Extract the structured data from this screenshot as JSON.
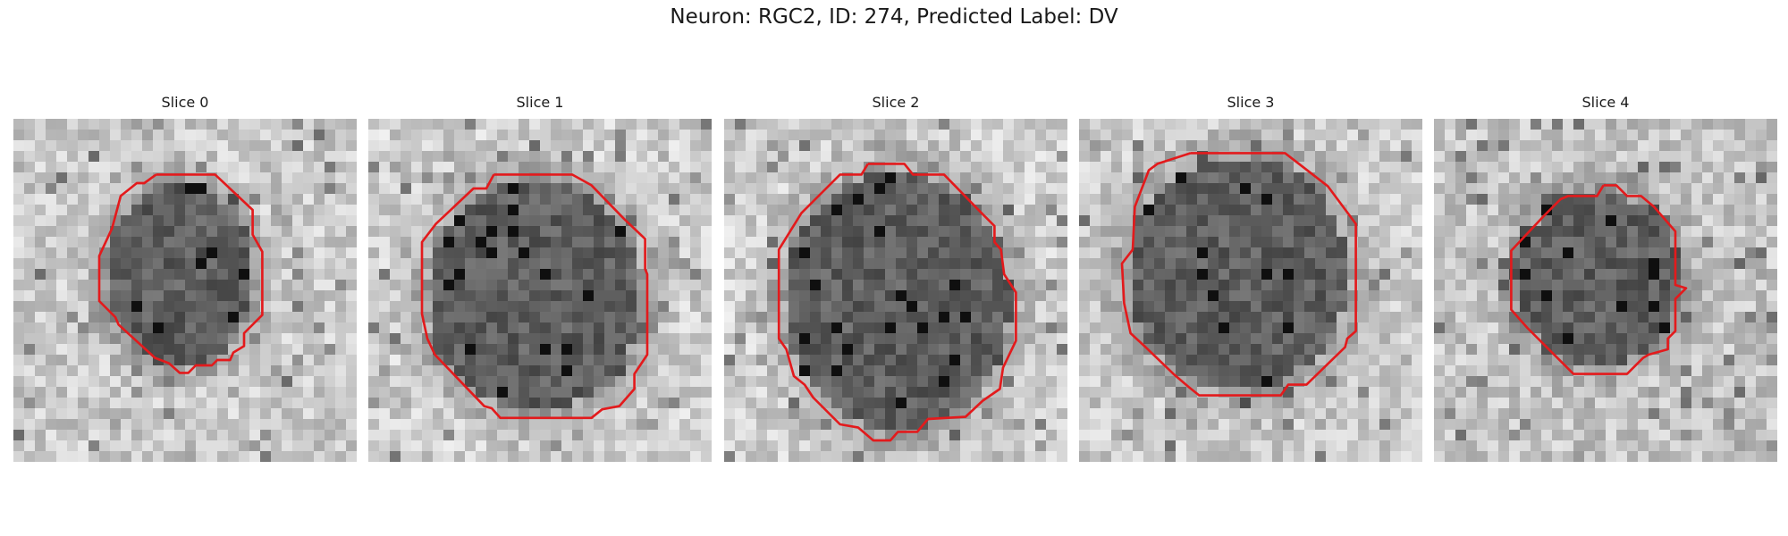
{
  "figure": {
    "title": "Neuron: RGC2, ID: 274, Predicted Label: DV",
    "outline_color": "#e31a1c",
    "colormap": "gray"
  },
  "panels": [
    {
      "title": "Slice 0"
    },
    {
      "title": "Slice 1"
    },
    {
      "title": "Slice 2"
    },
    {
      "title": "Slice 3"
    },
    {
      "title": "Slice 4"
    }
  ]
}
